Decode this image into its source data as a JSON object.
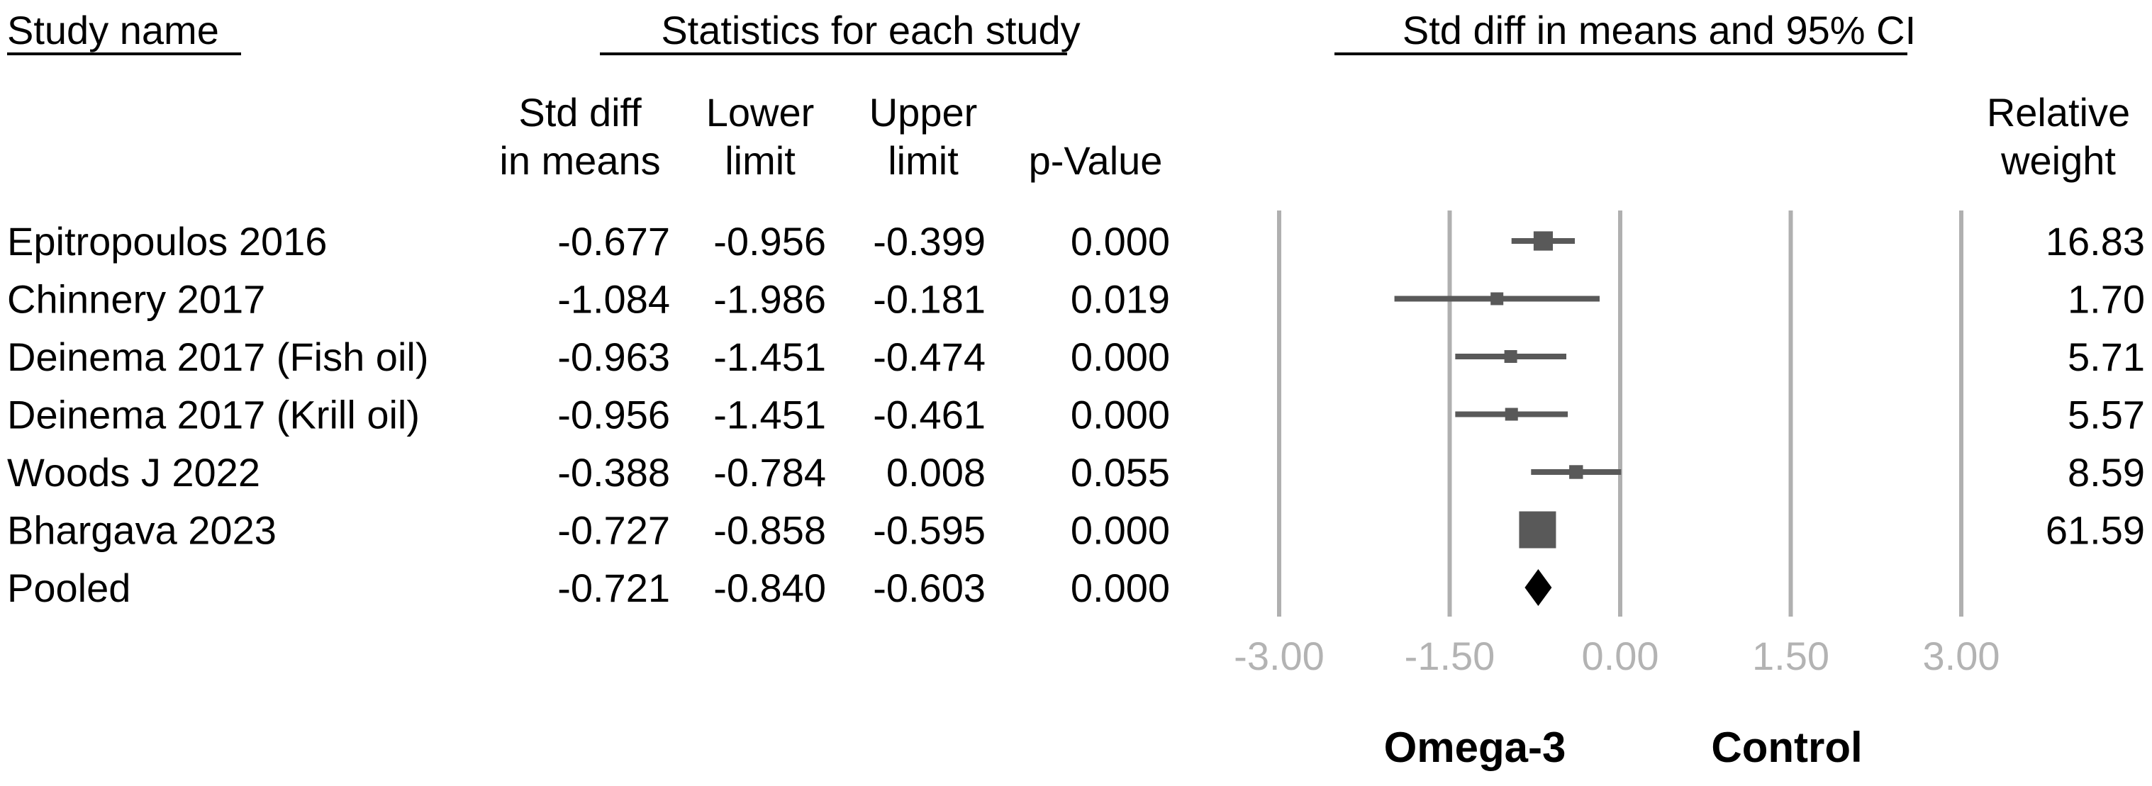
{
  "headers": {
    "study_name": "Study name",
    "statistics": "Statistics for each study",
    "ci_plot": "Std diff in means and 95% CI"
  },
  "columns": {
    "std_diff": [
      "Std diff",
      "in means"
    ],
    "lower": [
      "Lower",
      "limit"
    ],
    "upper": [
      "Upper",
      "limit"
    ],
    "p_value": [
      "p-Value"
    ],
    "weight": [
      "Relative",
      "weight"
    ]
  },
  "chart_data": {
    "type": "forest",
    "title": "Std diff in means and 95% CI",
    "xlim": [
      -3.0,
      3.0
    ],
    "xticks": [
      -3.0,
      -1.5,
      0.0,
      1.5,
      3.0
    ],
    "xtick_labels": [
      "-3.00",
      "-1.50",
      "0.00",
      "1.50",
      "3.00"
    ],
    "gridlines": true,
    "favours_left": "Omega-3",
    "favours_right": "Control",
    "studies": [
      {
        "name": "Epitropoulos 2016",
        "std_diff": "-0.677",
        "lower": "-0.956",
        "upper": "-0.399",
        "p_value": "0.000",
        "weight": "16.83",
        "est": -0.677,
        "lo": -0.956,
        "hi": -0.399,
        "w": 16.83
      },
      {
        "name": "Chinnery 2017",
        "std_diff": "-1.084",
        "lower": "-1.986",
        "upper": "-0.181",
        "p_value": "0.019",
        "weight": "1.70",
        "est": -1.084,
        "lo": -1.986,
        "hi": -0.181,
        "w": 1.7
      },
      {
        "name": "Deinema 2017 (Fish oil)",
        "std_diff": "-0.963",
        "lower": "-1.451",
        "upper": "-0.474",
        "p_value": "0.000",
        "weight": "5.71",
        "est": -0.963,
        "lo": -1.451,
        "hi": -0.474,
        "w": 5.71
      },
      {
        "name": "Deinema 2017 (Krill oil)",
        "std_diff": "-0.956",
        "lower": "-1.451",
        "upper": "-0.461",
        "p_value": "0.000",
        "weight": "5.57",
        "est": -0.956,
        "lo": -1.451,
        "hi": -0.461,
        "w": 5.57
      },
      {
        "name": "Woods J 2022",
        "std_diff": "-0.388",
        "lower": "-0.784",
        "upper": "0.008",
        "p_value": "0.055",
        "weight": "8.59",
        "est": -0.388,
        "lo": -0.784,
        "hi": 0.008,
        "w": 8.59
      },
      {
        "name": "Bhargava 2023",
        "std_diff": "-0.727",
        "lower": "-0.858",
        "upper": "-0.595",
        "p_value": "0.000",
        "weight": "61.59",
        "est": -0.727,
        "lo": -0.858,
        "hi": -0.595,
        "w": 61.59
      }
    ],
    "pooled": {
      "name": "Pooled",
      "std_diff": "-0.721",
      "lower": "-0.840",
      "upper": "-0.603",
      "p_value": "0.000",
      "est": -0.721,
      "lo": -0.84,
      "hi": -0.603
    }
  },
  "colors": {
    "marker": "#595959",
    "diamond": "#000000",
    "grid": "#b0b0b0",
    "tick_label": "#b3b3b3",
    "text": "#000000"
  }
}
